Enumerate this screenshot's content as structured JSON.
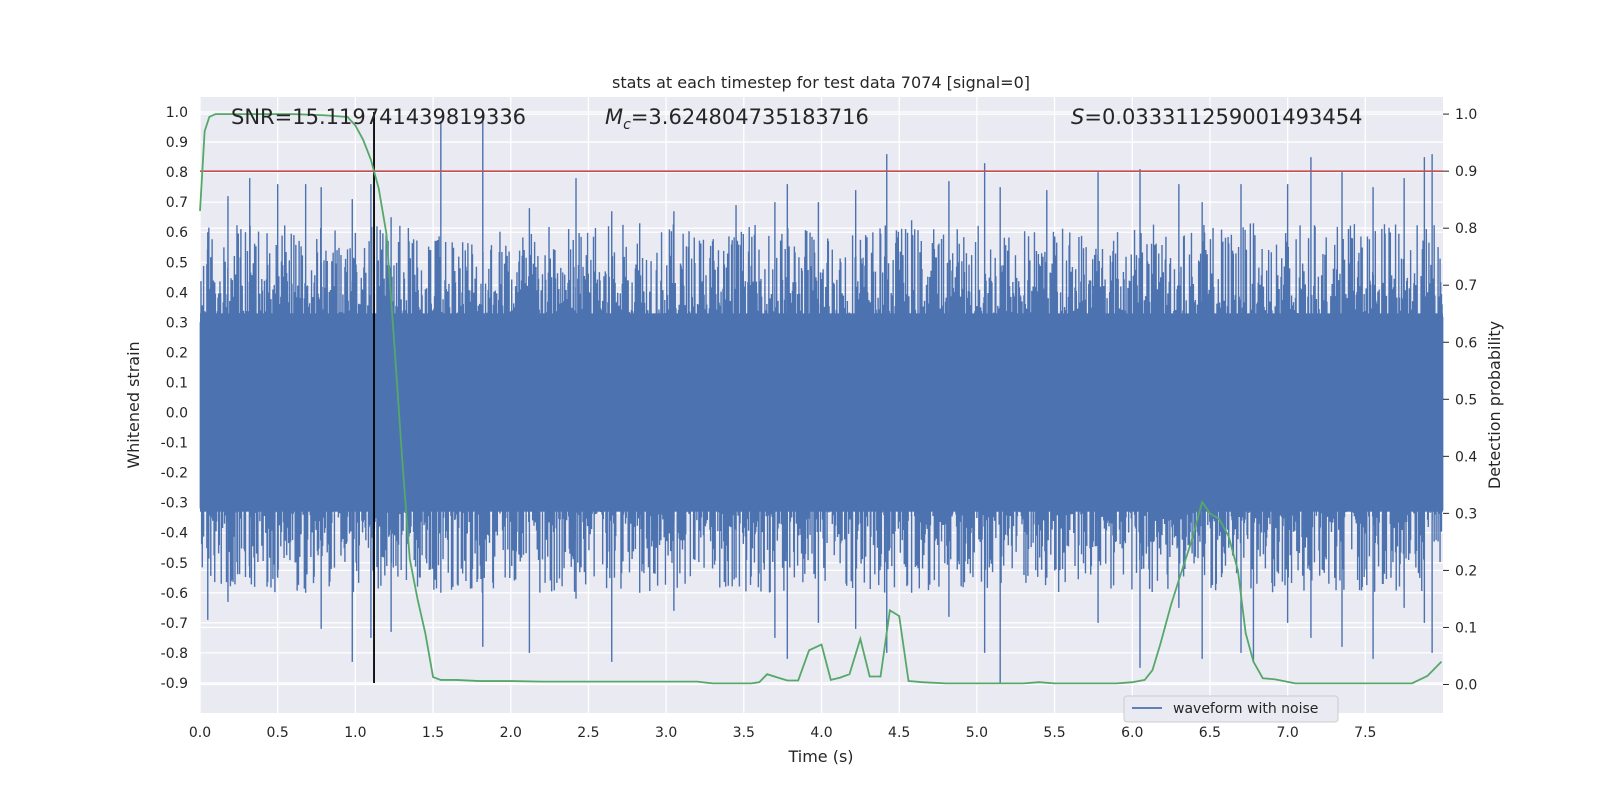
{
  "chart_data": {
    "type": "line",
    "title": "stats at each timestep for test data 7074 [signal=0]",
    "xlabel": "Time (s)",
    "ylabel": "Whitened strain",
    "y2label": "Detection probability",
    "xlim": [
      0.0,
      8.0
    ],
    "ylim": [
      -1.0,
      1.05
    ],
    "y2lim": [
      -0.05,
      1.03
    ],
    "x_ticks": [
      "0.0",
      "0.5",
      "1.0",
      "1.5",
      "2.0",
      "2.5",
      "3.0",
      "3.5",
      "4.0",
      "4.5",
      "5.0",
      "5.5",
      "6.0",
      "6.5",
      "7.0",
      "7.5"
    ],
    "y_ticks": [
      "1.0",
      "0.9",
      "0.8",
      "0.7",
      "0.6",
      "0.5",
      "0.4",
      "0.3",
      "0.2",
      "0.1",
      "0.0",
      "-0.1",
      "-0.2",
      "-0.3",
      "-0.4",
      "-0.5",
      "-0.6",
      "-0.7",
      "-0.8",
      "-0.9"
    ],
    "y2_ticks": [
      "1.0",
      "0.9",
      "0.8",
      "0.7",
      "0.6",
      "0.5",
      "0.4",
      "0.3",
      "0.2",
      "0.1",
      "0.0"
    ],
    "grid": true,
    "legend_position": "lower-right",
    "annotations": {
      "snr": "SNR=15.119741439819336",
      "mc_symbol": "M",
      "mc_subscript": "c",
      "mc_value": "=3.624804735183716",
      "s_symbol": "S",
      "s_value": "=0.033311259001493454"
    },
    "threshold": {
      "value": 0.9,
      "axis": "right"
    },
    "marker_time": 1.12,
    "marker_yrange": [
      -0.9,
      1.0
    ],
    "series": [
      {
        "name": "waveform with noise",
        "color": "#4c72b0",
        "axis": "left",
        "kind": "noise",
        "envelope_core": 0.33,
        "spikes": [
          [
            0.05,
            0.6,
            -0.69
          ],
          [
            0.18,
            0.72,
            -0.63
          ],
          [
            0.32,
            0.78,
            -0.55
          ],
          [
            0.5,
            0.76,
            -0.55
          ],
          [
            0.68,
            0.76,
            -0.6
          ],
          [
            0.78,
            0.75,
            -0.72
          ],
          [
            0.98,
            0.71,
            -0.83
          ],
          [
            1.1,
            0.76,
            -0.75
          ],
          [
            1.23,
            0.65,
            -0.73
          ],
          [
            1.55,
            0.97,
            -0.6
          ],
          [
            1.82,
            0.99,
            -0.78
          ],
          [
            2.12,
            0.68,
            -0.8
          ],
          [
            2.42,
            0.78,
            -0.62
          ],
          [
            2.65,
            0.67,
            -0.83
          ],
          [
            2.83,
            0.63,
            -0.6
          ],
          [
            3.05,
            0.67,
            -0.66
          ],
          [
            3.45,
            0.69,
            -0.55
          ],
          [
            3.7,
            0.7,
            -0.75
          ],
          [
            3.78,
            0.76,
            -0.82
          ],
          [
            3.98,
            0.7,
            -0.7
          ],
          [
            4.22,
            0.74,
            -0.72
          ],
          [
            4.42,
            0.86,
            -0.8
          ],
          [
            4.58,
            0.64,
            -0.6
          ],
          [
            4.82,
            0.77,
            -0.68
          ],
          [
            5.05,
            0.83,
            -0.8
          ],
          [
            5.15,
            0.75,
            -0.9
          ],
          [
            5.45,
            0.74,
            -0.55
          ],
          [
            5.78,
            0.8,
            -0.7
          ],
          [
            6.05,
            0.81,
            -0.85
          ],
          [
            6.3,
            0.76,
            -0.65
          ],
          [
            6.45,
            0.7,
            -0.82
          ],
          [
            6.7,
            0.76,
            -0.8
          ],
          [
            6.78,
            0.63,
            -0.83
          ],
          [
            7.0,
            0.76,
            -0.7
          ],
          [
            7.15,
            0.85,
            -0.75
          ],
          [
            7.35,
            0.8,
            -0.78
          ],
          [
            7.55,
            0.75,
            -0.82
          ],
          [
            7.75,
            0.78,
            -0.65
          ],
          [
            7.88,
            0.85,
            -0.7
          ],
          [
            7.93,
            0.86,
            -0.8
          ]
        ]
      },
      {
        "name": "detection probability",
        "color": "#55a868",
        "axis": "right",
        "kind": "line",
        "x": [
          0.0,
          0.03,
          0.06,
          0.1,
          0.2,
          0.4,
          0.6,
          0.8,
          0.95,
          1.0,
          1.05,
          1.1,
          1.15,
          1.2,
          1.25,
          1.3,
          1.35,
          1.4,
          1.45,
          1.5,
          1.55,
          1.65,
          1.8,
          2.0,
          2.2,
          2.4,
          2.6,
          2.8,
          3.0,
          3.2,
          3.3,
          3.45,
          3.55,
          3.6,
          3.65,
          3.72,
          3.78,
          3.85,
          3.92,
          4.0,
          4.06,
          4.12,
          4.18,
          4.25,
          4.31,
          4.38,
          4.44,
          4.5,
          4.56,
          4.65,
          4.8,
          5.0,
          5.2,
          5.3,
          5.4,
          5.5,
          5.7,
          5.9,
          6.0,
          6.08,
          6.13,
          6.18,
          6.25,
          6.32,
          6.38,
          6.45,
          6.5,
          6.56,
          6.62,
          6.68,
          6.73,
          6.78,
          6.84,
          6.92,
          7.05,
          7.2,
          7.4,
          7.6,
          7.8,
          7.9,
          7.99
        ],
        "y": [
          0.83,
          0.97,
          0.995,
          1.0,
          1.0,
          1.0,
          1.0,
          0.998,
          0.995,
          0.98,
          0.955,
          0.92,
          0.87,
          0.79,
          0.6,
          0.4,
          0.22,
          0.15,
          0.09,
          0.013,
          0.008,
          0.008,
          0.006,
          0.006,
          0.005,
          0.005,
          0.005,
          0.005,
          0.005,
          0.005,
          0.002,
          0.002,
          0.002,
          0.004,
          0.018,
          0.012,
          0.007,
          0.007,
          0.06,
          0.07,
          0.008,
          0.012,
          0.018,
          0.08,
          0.014,
          0.014,
          0.13,
          0.12,
          0.006,
          0.004,
          0.002,
          0.002,
          0.002,
          0.002,
          0.004,
          0.002,
          0.002,
          0.002,
          0.004,
          0.008,
          0.025,
          0.07,
          0.14,
          0.2,
          0.25,
          0.32,
          0.3,
          0.29,
          0.26,
          0.2,
          0.09,
          0.04,
          0.011,
          0.009,
          0.002,
          0.002,
          0.002,
          0.002,
          0.002,
          0.015,
          0.04
        ]
      }
    ]
  }
}
